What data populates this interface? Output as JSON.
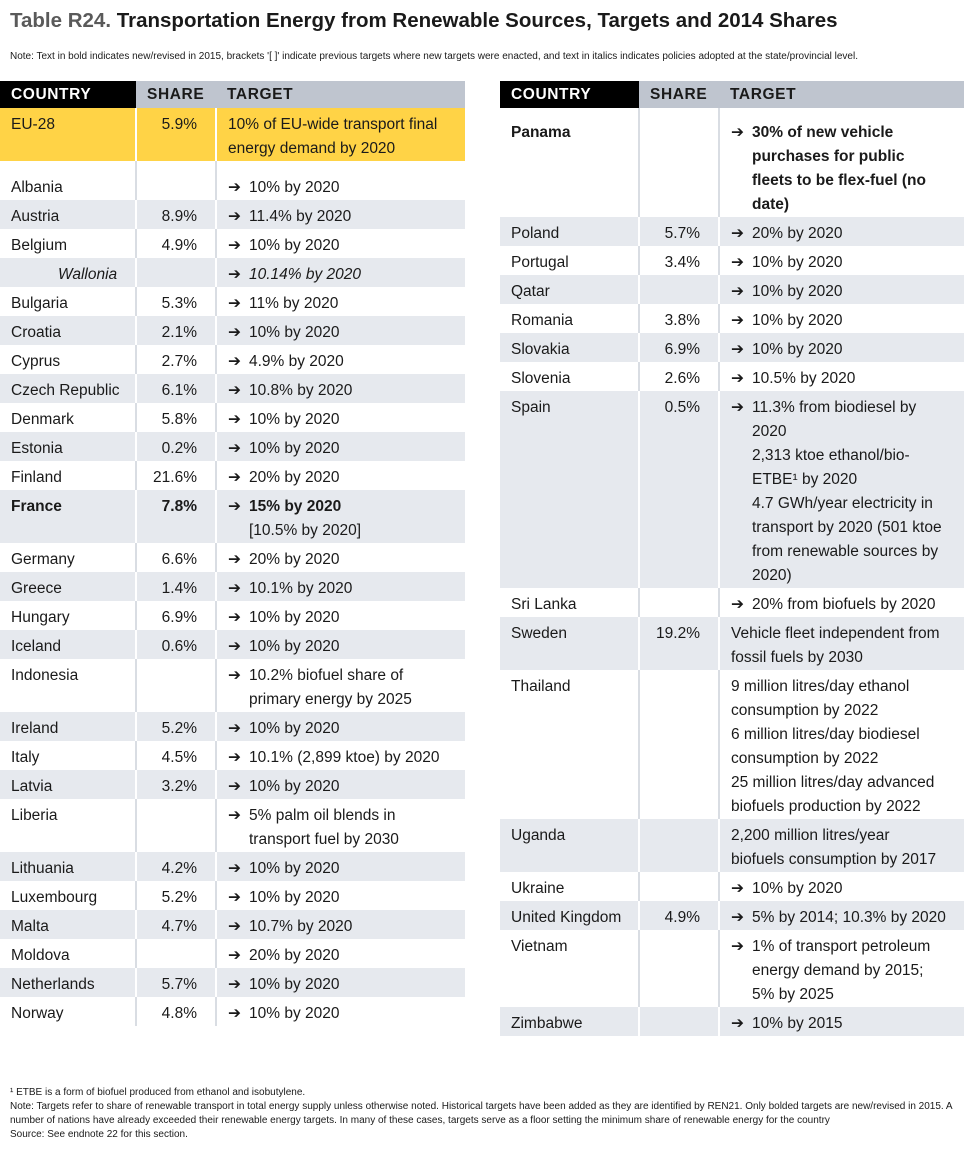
{
  "title": {
    "label": "Table R24.",
    "text": "Transportation Energy from Renewable Sources, Targets and 2014 Shares"
  },
  "note_top": "Note: Text in bold indicates new/revised in 2015, brackets '[ ]' indicate previous targets where new targets were enacted, and text in italics indicates policies adopted at the state/provincial level.",
  "headers": {
    "country": "COUNTRY",
    "share": "SHARE",
    "target": "TARGET"
  },
  "left_rows": [
    {
      "country": "EU-28",
      "share": "5.9%",
      "lines": [
        "10% of EU-wide transport final",
        "energy demand by 2020"
      ],
      "arrow": false,
      "style": "eu"
    },
    {
      "country": "Albania",
      "share": "",
      "lines": [
        "10% by 2020"
      ],
      "arrow": true
    },
    {
      "country": "Austria",
      "share": "8.9%",
      "lines": [
        "11.4% by 2020"
      ],
      "arrow": true
    },
    {
      "country": "Belgium",
      "share": "4.9%",
      "lines": [
        "10% by 2020"
      ],
      "arrow": true
    },
    {
      "country": "Wallonia",
      "share": "",
      "lines": [
        "10.14% by 2020"
      ],
      "arrow": true,
      "italic": true
    },
    {
      "country": "Bulgaria",
      "share": "5.3%",
      "lines": [
        "11% by 2020"
      ],
      "arrow": true
    },
    {
      "country": "Croatia",
      "share": "2.1%",
      "lines": [
        "10% by 2020"
      ],
      "arrow": true
    },
    {
      "country": "Cyprus",
      "share": "2.7%",
      "lines": [
        "4.9% by 2020"
      ],
      "arrow": true
    },
    {
      "country": "Czech Republic",
      "share": "6.1%",
      "lines": [
        "10.8% by 2020"
      ],
      "arrow": true
    },
    {
      "country": "Denmark",
      "share": "5.8%",
      "lines": [
        "10% by 2020"
      ],
      "arrow": true
    },
    {
      "country": "Estonia",
      "share": "0.2%",
      "lines": [
        "10% by 2020"
      ],
      "arrow": true
    },
    {
      "country": "Finland",
      "share": "21.6%",
      "lines": [
        "20% by 2020"
      ],
      "arrow": true
    },
    {
      "country": "France",
      "share": "7.8%",
      "lines": [
        "15% by 2020",
        "[10.5% by 2020]"
      ],
      "arrow": true,
      "bold": true
    },
    {
      "country": "Germany",
      "share": "6.6%",
      "lines": [
        "20% by 2020"
      ],
      "arrow": true
    },
    {
      "country": "Greece",
      "share": "1.4%",
      "lines": [
        "10.1% by 2020"
      ],
      "arrow": true
    },
    {
      "country": "Hungary",
      "share": "6.9%",
      "lines": [
        "10% by 2020"
      ],
      "arrow": true
    },
    {
      "country": "Iceland",
      "share": "0.6%",
      "lines": [
        "10% by 2020"
      ],
      "arrow": true
    },
    {
      "country": "Indonesia",
      "share": "",
      "lines": [
        "10.2% biofuel share of",
        "primary energy by 2025"
      ],
      "arrow": true
    },
    {
      "country": "Ireland",
      "share": "5.2%",
      "lines": [
        "10% by 2020"
      ],
      "arrow": true
    },
    {
      "country": "Italy",
      "share": "4.5%",
      "lines": [
        "10.1% (2,899 ktoe) by 2020"
      ],
      "arrow": true
    },
    {
      "country": "Latvia",
      "share": "3.2%",
      "lines": [
        "10% by 2020"
      ],
      "arrow": true
    },
    {
      "country": "Liberia",
      "share": "",
      "lines": [
        "5% palm oil blends in",
        "transport fuel by 2030"
      ],
      "arrow": true
    },
    {
      "country": "Lithuania",
      "share": "4.2%",
      "lines": [
        "10% by 2020"
      ],
      "arrow": true
    },
    {
      "country": "Luxembourg",
      "share": "5.2%",
      "lines": [
        "10% by 2020"
      ],
      "arrow": true
    },
    {
      "country": "Malta",
      "share": "4.7%",
      "lines": [
        "10.7% by 2020"
      ],
      "arrow": true
    },
    {
      "country": "Moldova",
      "share": "",
      "lines": [
        "20% by 2020"
      ],
      "arrow": true
    },
    {
      "country": "Netherlands",
      "share": "5.7%",
      "lines": [
        "10% by 2020"
      ],
      "arrow": true
    },
    {
      "country": "Norway",
      "share": "4.8%",
      "lines": [
        "10% by 2020"
      ],
      "arrow": true
    }
  ],
  "right_rows": [
    {
      "country": "Panama",
      "share": "",
      "lines": [
        "30% of new vehicle",
        "purchases for public",
        "fleets to be flex-fuel (no",
        "date)"
      ],
      "arrow": true,
      "bold": true
    },
    {
      "country": "Poland",
      "share": "5.7%",
      "lines": [
        "20% by 2020"
      ],
      "arrow": true
    },
    {
      "country": "Portugal",
      "share": "3.4%",
      "lines": [
        "10% by 2020"
      ],
      "arrow": true
    },
    {
      "country": "Qatar",
      "share": "",
      "lines": [
        "10% by 2020"
      ],
      "arrow": true
    },
    {
      "country": "Romania",
      "share": "3.8%",
      "lines": [
        "10% by 2020"
      ],
      "arrow": true
    },
    {
      "country": "Slovakia",
      "share": "6.9%",
      "lines": [
        "10% by 2020"
      ],
      "arrow": true
    },
    {
      "country": "Slovenia",
      "share": "2.6%",
      "lines": [
        "10.5% by 2020"
      ],
      "arrow": true
    },
    {
      "country": "Spain",
      "share": "0.5%",
      "lines": [
        "11.3% from biodiesel by",
        "2020",
        "2,313 ktoe ethanol/bio-",
        "ETBE¹ by 2020",
        "4.7 GWh/year electricity in",
        "transport by 2020 (501 ktoe",
        "from renewable sources by",
        "2020)"
      ],
      "arrow": true
    },
    {
      "country": "Sri Lanka",
      "share": "",
      "lines": [
        "20% from biofuels by 2020"
      ],
      "arrow": true
    },
    {
      "country": "Sweden",
      "share": "19.2%",
      "lines": [
        "Vehicle fleet independent from",
        "fossil fuels by 2030"
      ],
      "arrow": false
    },
    {
      "country": "Thailand",
      "share": "",
      "lines": [
        "9 million litres/day ethanol",
        "consumption by 2022",
        "6 million litres/day biodiesel",
        "consumption by 2022",
        "25 million litres/day advanced",
        "biofuels production by 2022"
      ],
      "arrow": false
    },
    {
      "country": "Uganda",
      "share": "",
      "lines": [
        "2,200 million litres/year",
        "biofuels consumption by 2017"
      ],
      "arrow": false
    },
    {
      "country": "Ukraine",
      "share": "",
      "lines": [
        "10% by 2020"
      ],
      "arrow": true
    },
    {
      "country": "United Kingdom",
      "share": "4.9%",
      "lines": [
        "5% by 2014; 10.3% by 2020"
      ],
      "arrow": true
    },
    {
      "country": "Vietnam",
      "share": "",
      "lines": [
        "1% of transport petroleum",
        "energy demand by 2015;",
        "5% by 2025"
      ],
      "arrow": true
    },
    {
      "country": "Zimbabwe",
      "share": "",
      "lines": [
        "10% by 2015"
      ],
      "arrow": true
    }
  ],
  "arrow_glyph": "➔",
  "footnotes": {
    "etbe": "¹  ETBE is a form of biofuel produced from ethanol and isobutylene.",
    "note": "Note: Targets refer to share of renewable transport in total energy supply unless otherwise noted. Historical targets have been added as they are identified by REN21. Only bolded targets are new/revised in 2015. A number of nations have already exceeded their renewable energy targets. In many of these cases, targets serve as a floor setting the minimum share of renewable energy for the country",
    "source": "Source: See endnote 22 for this section."
  },
  "colors": {
    "header_grey": "#bfc5cf",
    "row_grey": "#e6e9ee",
    "eu_yellow": "#ffd346"
  }
}
